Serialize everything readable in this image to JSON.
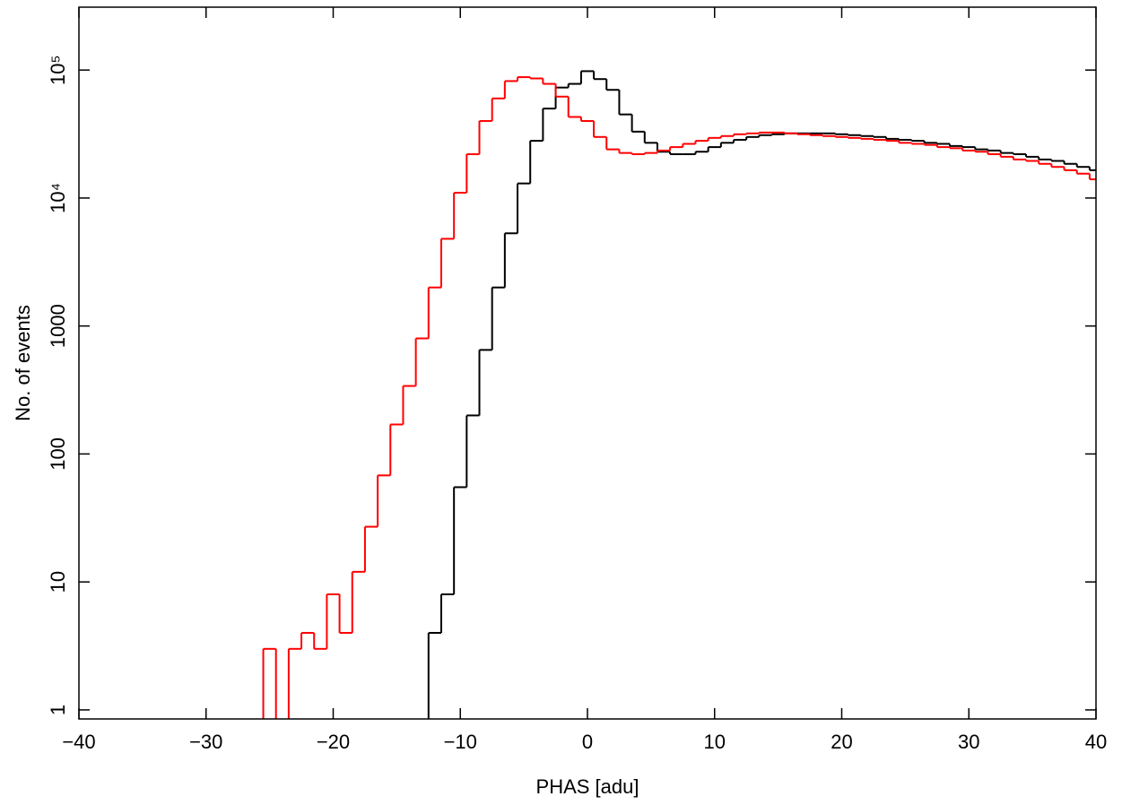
{
  "chart_data": {
    "type": "histogram",
    "log_y": true,
    "x_label": "PHAS [adu]",
    "y_label": "No. of events",
    "bins": [
      -26.5,
      -25.5,
      -24.5,
      -23.5,
      -22.5,
      -21.5,
      -20.5,
      -19.5,
      -18.5,
      -17.5,
      -16.5,
      -15.5,
      -14.5,
      -13.5,
      -12.5,
      -11.5,
      -10.5,
      -9.5,
      -8.5,
      -7.5,
      -6.5,
      -5.5,
      -4.5,
      -3.5,
      -2.5,
      -1.5,
      -0.5,
      0.5,
      1.5,
      2.5,
      3.5,
      4.5,
      5.5,
      6.5,
      7.5,
      8.5,
      9.5,
      10.5,
      11.5,
      12.5,
      13.5,
      14.5,
      15.5,
      16.5,
      17.5,
      18.5,
      19.5,
      20.5,
      21.5,
      22.5,
      23.5,
      24.5,
      25.5,
      26.5,
      27.5,
      28.5,
      29.5,
      30.5,
      31.5,
      32.5,
      33.5,
      34.5,
      35.5,
      36.5,
      37.5,
      38.5,
      39.5,
      40.5
    ],
    "series": [
      {
        "color": "#000000",
        "values": [
          0,
          0,
          0,
          0,
          0,
          0,
          0,
          0,
          0,
          0,
          0,
          0,
          0,
          0,
          4,
          8,
          55,
          200,
          650,
          2000,
          5300,
          13000,
          28000,
          50000,
          73000,
          78000,
          98000,
          85000,
          70000,
          45000,
          33000,
          27000,
          23000,
          22000,
          22000,
          23000,
          25000,
          27000,
          28500,
          30000,
          31000,
          31500,
          32000,
          32000,
          32000,
          32000,
          31500,
          31000,
          30500,
          30000,
          29000,
          28500,
          28000,
          27000,
          26500,
          25500,
          25000,
          24000,
          23500,
          22500,
          22000,
          21000,
          20000,
          19500,
          18500,
          17500,
          16500
        ]
      },
      {
        "color": "#ff0000",
        "values": [
          0,
          3,
          0,
          3,
          4,
          3,
          8,
          4,
          12,
          27,
          68,
          170,
          340,
          800,
          2000,
          4800,
          11000,
          22000,
          40000,
          60000,
          82000,
          88000,
          86000,
          78000,
          62000,
          43000,
          40000,
          30000,
          24000,
          22500,
          22000,
          22500,
          23500,
          25000,
          26500,
          28000,
          29500,
          30500,
          31500,
          32000,
          32500,
          32500,
          32000,
          31500,
          31000,
          30500,
          30000,
          29500,
          29000,
          28500,
          28000,
          27000,
          26500,
          26000,
          25000,
          24500,
          23500,
          23000,
          22000,
          21000,
          20000,
          19500,
          18500,
          17500,
          16500,
          15500,
          14000
        ]
      }
    ],
    "xlim": [
      -40,
      40
    ],
    "xticks": [
      {
        "value": -40,
        "label": "−40"
      },
      {
        "value": -30,
        "label": "−30"
      },
      {
        "value": -20,
        "label": "−20"
      },
      {
        "value": -10,
        "label": "−10"
      },
      0,
      10,
      20,
      30,
      40
    ],
    "ylim": [
      0.85,
      310000
    ],
    "yticks": [
      1,
      10,
      100,
      1000,
      {
        "value": 10000,
        "label": "10⁴"
      },
      {
        "value": 100000,
        "label": "10⁵"
      }
    ]
  }
}
